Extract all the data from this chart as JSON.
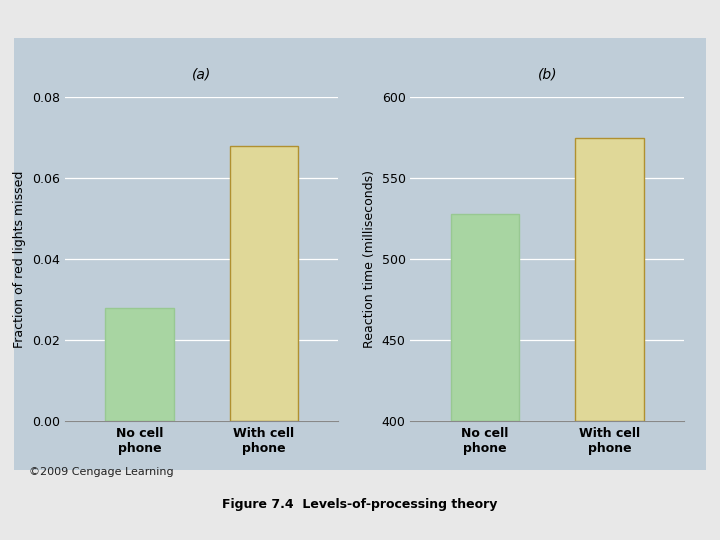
{
  "subplot_a": {
    "label": "(a)",
    "categories": [
      "No cell\nphone",
      "With cell\nphone"
    ],
    "values": [
      0.028,
      0.068
    ],
    "ylabel": "Fraction of red lights missed",
    "ylim": [
      0,
      0.08
    ],
    "yticks": [
      0,
      0.02,
      0.04,
      0.06,
      0.08
    ],
    "bar_bottom": 0
  },
  "subplot_b": {
    "label": "(b)",
    "categories": [
      "No cell\nphone",
      "With cell\nphone"
    ],
    "values": [
      128,
      175
    ],
    "ylabel": "Reaction time (milliseconds)",
    "ylim": [
      400,
      600
    ],
    "yticks": [
      400,
      450,
      500,
      550,
      600
    ],
    "bar_bottom": 400
  },
  "bar_colors": [
    "#a8d5a2",
    "#e0d898"
  ],
  "bar_edge_colors_green": "#98c892",
  "bar_edge_colors_tan": "#b09030",
  "background_color": "#bfcdd8",
  "outer_bg": "#e8e8e8",
  "title": "Figure 7.4  Levels-of-processing theory",
  "copyright_text": "©2009 Cengage Learning",
  "title_fontsize": 9,
  "label_fontsize": 9,
  "tick_fontsize": 9,
  "ylabel_fontsize": 9
}
